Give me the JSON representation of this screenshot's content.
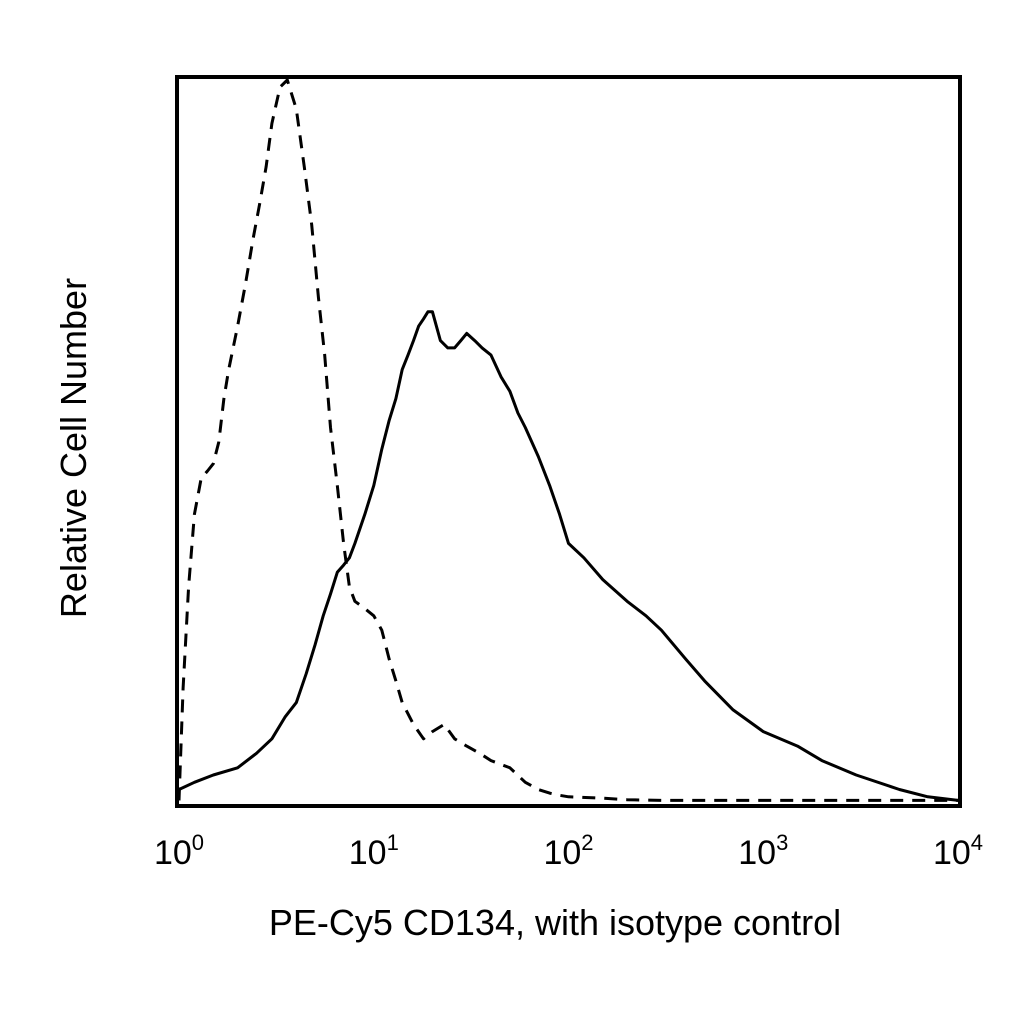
{
  "chart_data": {
    "type": "line",
    "title": "",
    "xlabel": "PE-Cy5 CD134, with isotype control",
    "ylabel": "Relative Cell Number",
    "x_scale": "log",
    "xlim": [
      1,
      10000
    ],
    "ylim": [
      0,
      100
    ],
    "xticks": [
      {
        "base": "10",
        "exp": "0",
        "value": 1
      },
      {
        "base": "10",
        "exp": "1",
        "value": 10
      },
      {
        "base": "10",
        "exp": "2",
        "value": 100
      },
      {
        "base": "10",
        "exp": "3",
        "value": 1000
      },
      {
        "base": "10",
        "exp": "4",
        "value": 10000
      }
    ],
    "grid": false,
    "legend": "none",
    "series": [
      {
        "style": "dashed",
        "color": "#000000",
        "x": [
          1,
          1.05,
          1.12,
          1.2,
          1.3,
          1.4,
          1.5,
          1.6,
          1.7,
          1.8,
          2.0,
          2.2,
          2.4,
          2.6,
          2.8,
          3.0,
          3.3,
          3.6,
          4.0,
          4.4,
          4.8,
          5.2,
          5.6,
          6.0,
          6.5,
          7.0,
          7.5,
          8.0,
          9.0,
          10,
          11,
          12,
          13,
          14,
          16,
          18,
          20,
          23,
          26,
          30,
          35,
          40,
          50,
          60,
          70,
          80,
          90,
          100,
          150,
          200,
          300,
          500,
          1000,
          2000,
          5000,
          10000
        ],
        "y": [
          0.5,
          16,
          30,
          40,
          45,
          46,
          47,
          50,
          56,
          60,
          66,
          72,
          78,
          83,
          88,
          94,
          99,
          100,
          96,
          88,
          80,
          70,
          62,
          52,
          44,
          36,
          30,
          28,
          27,
          26,
          24,
          20,
          17,
          14,
          11,
          9,
          10,
          11,
          9,
          8,
          7,
          6,
          5,
          3,
          2,
          1.5,
          1.2,
          1.0,
          0.8,
          0.6,
          0.5,
          0.5,
          0.5,
          0.5,
          0.5,
          0.5
        ]
      },
      {
        "style": "solid",
        "color": "#000000",
        "x": [
          1,
          1.2,
          1.5,
          2.0,
          2.5,
          3.0,
          3.5,
          4.0,
          4.5,
          5.0,
          5.5,
          6.0,
          6.5,
          7.0,
          7.5,
          8.0,
          9.0,
          10,
          11,
          12,
          13,
          14,
          15,
          16,
          17,
          18,
          19,
          20,
          22,
          24,
          26,
          28,
          30,
          33,
          36,
          40,
          45,
          50,
          55,
          60,
          70,
          80,
          90,
          100,
          120,
          150,
          200,
          250,
          300,
          400,
          500,
          700,
          1000,
          1500,
          2000,
          3000,
          5000,
          7000,
          10000
        ],
        "y": [
          2,
          3,
          4,
          5,
          7,
          9,
          12,
          14,
          18,
          22,
          26,
          29,
          32,
          33,
          34,
          36,
          40,
          44,
          49,
          53,
          56,
          60,
          62,
          64,
          66,
          67,
          68,
          68,
          64,
          63,
          63,
          64,
          65,
          64,
          63,
          62,
          59,
          57,
          54,
          52,
          48,
          44,
          40,
          36,
          34,
          31,
          28,
          26,
          24,
          20,
          17,
          13,
          10,
          8,
          6,
          4,
          2,
          1,
          0.5
        ]
      }
    ]
  }
}
